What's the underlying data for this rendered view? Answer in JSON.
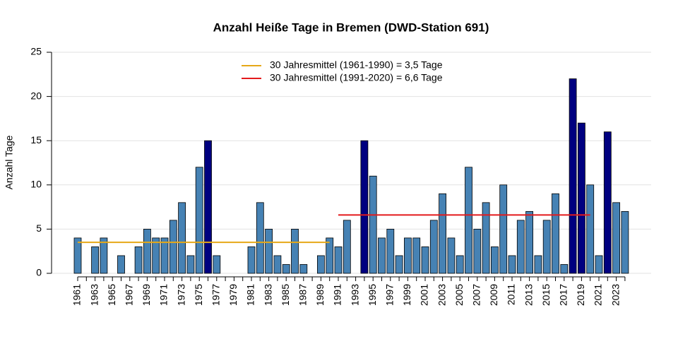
{
  "chart_data": {
    "type": "bar",
    "title": "Anzahl Heiße Tage in Bremen (DWD-Station 691)",
    "y_label": "Anzahl Tage",
    "categories": [
      "1961",
      null,
      "1963",
      null,
      "1965",
      null,
      "1967",
      null,
      "1969",
      null,
      "1971",
      null,
      "1973",
      null,
      "1975",
      null,
      "1977",
      null,
      "1979",
      null,
      "1981",
      null,
      "1983",
      null,
      "1985",
      null,
      "1987",
      null,
      "1989",
      null,
      "1991",
      null,
      "1993",
      null,
      "1995",
      null,
      "1997",
      null,
      "1999",
      null,
      "2001",
      null,
      "2003",
      null,
      "2005",
      null,
      "2007",
      null,
      "2009",
      null,
      "2011",
      null,
      "2013",
      null,
      "2015",
      null,
      "2017",
      null,
      "2019",
      null,
      "2021",
      null,
      "2023",
      null
    ],
    "values": [
      4,
      0,
      3,
      4,
      0,
      2,
      0,
      3,
      5,
      4,
      4,
      6,
      8,
      2,
      12,
      15,
      2,
      0,
      0,
      0,
      3,
      8,
      5,
      2,
      1,
      5,
      1,
      0,
      2,
      4,
      3,
      6,
      0,
      15,
      11,
      4,
      5,
      2,
      4,
      4,
      3,
      6,
      9,
      4,
      2,
      12,
      5,
      8,
      3,
      10,
      2,
      6,
      7,
      2,
      6,
      9,
      1,
      22,
      17,
      10,
      2,
      16,
      8,
      7
    ],
    "colors": [
      "#4682b4",
      "#4682b4",
      "#4682b4",
      "#4682b4",
      "#4682b4",
      "#4682b4",
      "#4682b4",
      "#4682b4",
      "#4682b4",
      "#4682b4",
      "#4682b4",
      "#4682b4",
      "#4682b4",
      "#4682b4",
      "#4682b4",
      "#000080",
      "#4682b4",
      "#4682b4",
      "#4682b4",
      "#4682b4",
      "#4682b4",
      "#4682b4",
      "#4682b4",
      "#4682b4",
      "#4682b4",
      "#4682b4",
      "#4682b4",
      "#4682b4",
      "#4682b4",
      "#4682b4",
      "#4682b4",
      "#4682b4",
      "#4682b4",
      "#000080",
      "#4682b4",
      "#4682b4",
      "#4682b4",
      "#4682b4",
      "#4682b4",
      "#4682b4",
      "#4682b4",
      "#4682b4",
      "#4682b4",
      "#4682b4",
      "#4682b4",
      "#4682b4",
      "#4682b4",
      "#4682b4",
      "#4682b4",
      "#4682b4",
      "#4682b4",
      "#4682b4",
      "#4682b4",
      "#4682b4",
      "#4682b4",
      "#4682b4",
      "#4682b4",
      "#000080",
      "#000080",
      "#4682b4",
      "#4682b4",
      "#000080",
      "#4682b4",
      "#4682b4"
    ],
    "reference_lines": [
      {
        "name": "30 Jahresmittel (1961-1990) = 3,5 Tage",
        "color": "#e6a817",
        "value": 3.5,
        "start": 1961,
        "end": 1990
      },
      {
        "name": "30 Jahresmittel (1991-2020) = 6,6 Tage",
        "color": "#e31a1c",
        "value": 6.6,
        "start": 1991,
        "end": 2020
      }
    ],
    "ylim": [
      0,
      25
    ],
    "yticks": [
      0,
      5,
      10,
      15,
      20,
      25
    ],
    "grid": true
  }
}
